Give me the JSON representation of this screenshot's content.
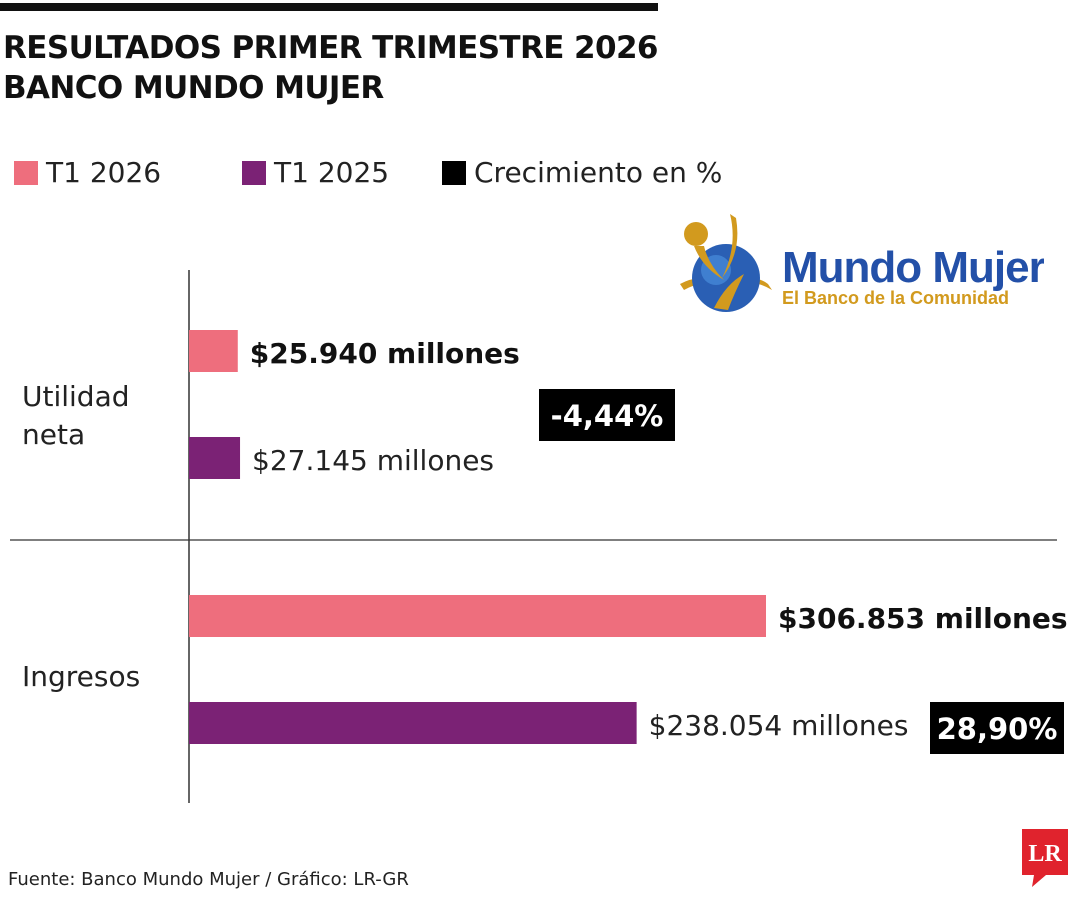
{
  "header": {
    "title_line1": "RESULTADOS PRIMER TRIMESTRE 2026",
    "title_line2": "BANCO MUNDO MUJER"
  },
  "legend": [
    {
      "label": "T1 2026",
      "color": "#ee6e7d"
    },
    {
      "label": "T1 2025",
      "color": "#7b2275"
    },
    {
      "label": "Crecimiento en %",
      "color": "#000000"
    }
  ],
  "logo": {
    "name": "Mundo Mujer",
    "tagline": "El Banco de la Comunidad",
    "name_color": "#2350a8",
    "tagline_color": "#d29a1e"
  },
  "chart_data": {
    "type": "bar",
    "orientation": "horizontal",
    "unit": "millones",
    "categories": [
      "Utilidad neta",
      "Ingresos"
    ],
    "series": [
      {
        "name": "T1 2026",
        "color": "#ee6e7d",
        "values": [
          25940,
          306853
        ],
        "labels": [
          "$25.940 millones",
          "$306.853 millones"
        ]
      },
      {
        "name": "T1 2025",
        "color": "#7b2275",
        "values": [
          27145,
          238054
        ],
        "labels": [
          "$27.145 millones",
          "$238.054 millones"
        ]
      }
    ],
    "growth": {
      "name": "Crecimiento en %",
      "values": [
        -4.44,
        28.9
      ],
      "labels": [
        "-4,44%",
        "28,90%"
      ]
    },
    "grid": false
  },
  "footer": {
    "source": "Fuente: Banco Mundo Mujer / Gráfico: LR-GR",
    "publisher": "LR"
  }
}
